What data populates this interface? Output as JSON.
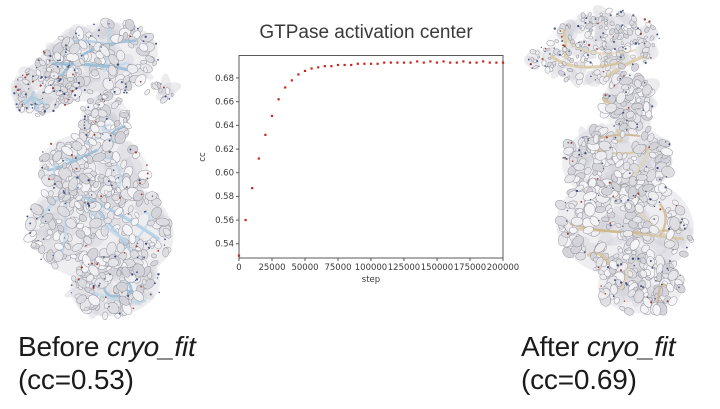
{
  "slide": {
    "background": "#ffffff"
  },
  "figures": {
    "before": {
      "name": "cryo-EM density map with fitted model (before)",
      "map_color": "#eaeaee",
      "ribbon_color": "#a6c9e0"
    },
    "after": {
      "name": "cryo-EM density map with fitted model (after)",
      "map_color": "#eaeaee",
      "ribbon_color": "#d8c49a"
    }
  },
  "captions": {
    "before": {
      "prefix": "Before ",
      "program": "cryo_fit",
      "cc": "(cc=0.53)"
    },
    "after": {
      "prefix": "After ",
      "program": "cryo_fit",
      "cc": "(cc=0.69)"
    }
  },
  "chart_data": {
    "type": "scatter",
    "title": "GTPase activation center",
    "xlabel": "step",
    "ylabel": "cc",
    "marker_color": "#c4261d",
    "axis_color": "#5a5a5a",
    "grid": false,
    "legend": null,
    "xlim": [
      0,
      200000
    ],
    "ylim": [
      0.528,
      0.699
    ],
    "xticks": [
      0,
      25000,
      50000,
      75000,
      100000,
      125000,
      150000,
      175000,
      200000
    ],
    "yticks": [
      0.54,
      0.56,
      0.58,
      0.6,
      0.62,
      0.64,
      0.66,
      0.68
    ],
    "x": [
      0,
      5000,
      10000,
      15000,
      20000,
      25000,
      30000,
      35000,
      40000,
      45000,
      50000,
      55000,
      60000,
      65000,
      70000,
      75000,
      80000,
      85000,
      90000,
      95000,
      100000,
      105000,
      110000,
      115000,
      120000,
      125000,
      130000,
      135000,
      140000,
      145000,
      150000,
      155000,
      160000,
      165000,
      170000,
      175000,
      180000,
      185000,
      190000,
      195000,
      200000
    ],
    "y": [
      0.53,
      0.56,
      0.587,
      0.612,
      0.632,
      0.648,
      0.662,
      0.672,
      0.678,
      0.683,
      0.686,
      0.688,
      0.689,
      0.69,
      0.69,
      0.691,
      0.691,
      0.691,
      0.692,
      0.692,
      0.692,
      0.692,
      0.693,
      0.693,
      0.693,
      0.693,
      0.693,
      0.694,
      0.693,
      0.694,
      0.693,
      0.694,
      0.693,
      0.693,
      0.694,
      0.693,
      0.693,
      0.694,
      0.693,
      0.693,
      0.693
    ]
  }
}
